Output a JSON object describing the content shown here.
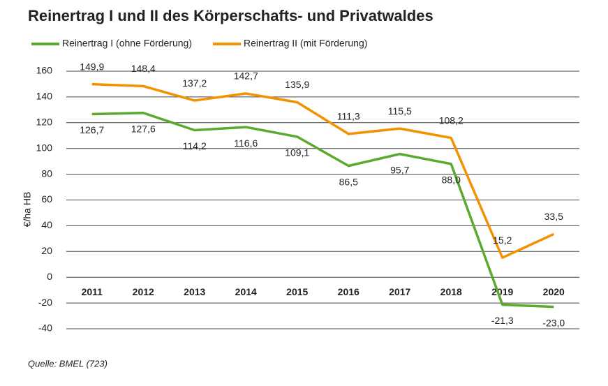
{
  "chart_data": {
    "type": "line",
    "title": "Reinertrag I und II des Körperschafts- und Privatwaldes",
    "y_label": "€/ha HB",
    "source": "Quelle: BMEL (723)",
    "categories": [
      "2011",
      "2012",
      "2013",
      "2014",
      "2015",
      "2016",
      "2017",
      "2018",
      "2019",
      "2020"
    ],
    "series": [
      {
        "name": "Reinertrag I (ohne Förderung)",
        "color": "#5aaa32",
        "values": [
          126.7,
          127.6,
          114.2,
          116.6,
          109.1,
          86.5,
          95.7,
          88.0,
          -21.3,
          -23.0
        ],
        "value_labels": [
          "126,7",
          "127,6",
          "114,2",
          "116,6",
          "109,1",
          "86,5",
          "95,7",
          "88,0",
          "-21,3",
          "-23,0"
        ]
      },
      {
        "name": "Reinertrag II (mit Förderung)",
        "color": "#f39200",
        "values": [
          149.9,
          148.4,
          137.2,
          142.7,
          135.9,
          111.3,
          115.5,
          108.2,
          15.2,
          33.5
        ],
        "value_labels": [
          "149,9",
          "148,4",
          "137,2",
          "142,7",
          "135,9",
          "111,3",
          "115,5",
          "108,2",
          "15,2",
          "33,5"
        ]
      }
    ],
    "ylim": [
      -40,
      160
    ],
    "yticks": [
      -40,
      -20,
      0,
      20,
      40,
      60,
      80,
      100,
      120,
      140,
      160
    ],
    "grid": true,
    "legend": "top-left"
  }
}
